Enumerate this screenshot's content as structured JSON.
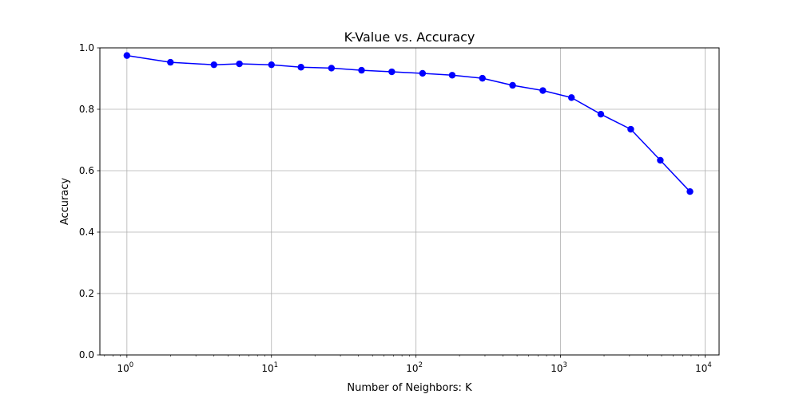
{
  "chart_data": {
    "type": "line",
    "title": "K-Value vs. Accuracy",
    "xlabel": "Number of Neighbors: K",
    "ylabel": "Accuracy",
    "xscale": "log",
    "xlim": [
      0.65,
      12500
    ],
    "ylim": [
      0,
      1.0
    ],
    "grid": true,
    "xticks": [
      {
        "base": "10",
        "exp": "0",
        "value": 1
      },
      {
        "base": "10",
        "exp": "1",
        "value": 10
      },
      {
        "base": "10",
        "exp": "2",
        "value": 100
      },
      {
        "base": "10",
        "exp": "3",
        "value": 1000
      },
      {
        "base": "10",
        "exp": "4",
        "value": 10000
      }
    ],
    "yticks": [
      "0.0",
      "0.2",
      "0.4",
      "0.6",
      "0.8",
      "1.0"
    ],
    "series": [
      {
        "color": "#0000ff",
        "marker": "circle",
        "x": [
          1,
          2,
          4,
          6,
          10,
          16,
          26,
          42,
          68,
          111,
          178,
          288,
          466,
          754,
          1190,
          1900,
          3060,
          4900,
          7860
        ],
        "y": [
          0.975,
          0.953,
          0.945,
          0.948,
          0.945,
          0.937,
          0.934,
          0.927,
          0.922,
          0.917,
          0.911,
          0.901,
          0.878,
          0.861,
          0.838,
          0.784,
          0.735,
          0.634,
          0.532
        ]
      }
    ]
  }
}
